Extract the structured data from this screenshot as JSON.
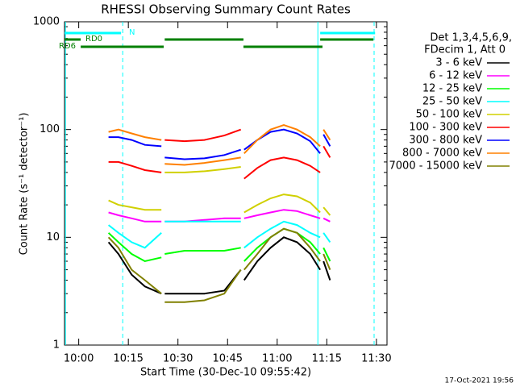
{
  "chart_data": {
    "type": "line",
    "title": "RHESSI Observing Summary Count Rates",
    "xlabel": "Start Time (30-Dec-10 09:55:42)",
    "ylabel": "Count Rate (s⁻¹ detector⁻¹)",
    "log_y": true,
    "xlim": [
      595.7,
      693.2
    ],
    "xticks": [
      {
        "value": 600,
        "label": "10:00"
      },
      {
        "value": 615,
        "label": "10:15"
      },
      {
        "value": 630,
        "label": "10:30"
      },
      {
        "value": 645,
        "label": "10:45"
      },
      {
        "value": 660,
        "label": "11:00"
      },
      {
        "value": 675,
        "label": "11:15"
      },
      {
        "value": 690,
        "label": "11:30"
      }
    ],
    "ylim": [
      1,
      1000
    ],
    "yticks": [
      1,
      10,
      100,
      1000
    ],
    "yminorticks": [
      2,
      3,
      4,
      5,
      6,
      7,
      8,
      9,
      20,
      30,
      40,
      50,
      60,
      70,
      80,
      90,
      200,
      300,
      400,
      500,
      600,
      700,
      800,
      900
    ],
    "legend_header": [
      "Det 1,3,4,5,6,9,",
      "FDecim 1, Att 0"
    ],
    "footer": "17-Oct-2021 19:56",
    "x": [
      609,
      612,
      616,
      620,
      625,
      625.5,
      626,
      632,
      638,
      644,
      649,
      649.5,
      650,
      654,
      658,
      662,
      666,
      670,
      673,
      673.5,
      674,
      676
    ],
    "series": [
      {
        "name": "3 - 6 keV",
        "color": "#000000",
        "values": [
          9,
          7,
          4.5,
          3.5,
          3,
          null,
          3,
          3,
          3,
          3.2,
          5,
          null,
          4,
          6,
          8,
          10,
          9,
          7,
          5,
          null,
          6,
          4
        ]
      },
      {
        "name": "6 - 12 keV",
        "color": "#ff00ff",
        "values": [
          17,
          16,
          15,
          14,
          14,
          null,
          14,
          14,
          14.5,
          15,
          15,
          null,
          15,
          16,
          17,
          18,
          17.5,
          16,
          15,
          null,
          15,
          14
        ]
      },
      {
        "name": "12 - 25 keV",
        "color": "#00ff00",
        "values": [
          11,
          9,
          7,
          6,
          6.5,
          null,
          7,
          7.5,
          7.5,
          7.5,
          8,
          null,
          6,
          8,
          10,
          12,
          11,
          9,
          7,
          null,
          8,
          6
        ]
      },
      {
        "name": "25 - 50 keV",
        "color": "#00ffff",
        "values": [
          13,
          11,
          9,
          8,
          11,
          null,
          14,
          14,
          14,
          14,
          14,
          null,
          8,
          10,
          12,
          14,
          13,
          11,
          10,
          null,
          11,
          9
        ]
      },
      {
        "name": "50 - 100 keV",
        "color": "#d0d000",
        "values": [
          22,
          20,
          19,
          18,
          18,
          null,
          40,
          40,
          41,
          43,
          45,
          null,
          17,
          20,
          23,
          25,
          24,
          21,
          17,
          null,
          19,
          16
        ]
      },
      {
        "name": "100 - 300 keV",
        "color": "#ff0000",
        "values": [
          50,
          50,
          46,
          42,
          40,
          null,
          80,
          78,
          80,
          88,
          100,
          null,
          35,
          44,
          52,
          55,
          52,
          46,
          40,
          null,
          70,
          55
        ]
      },
      {
        "name": "300 - 800 keV",
        "color": "#0000ff",
        "values": [
          85,
          85,
          80,
          72,
          70,
          null,
          55,
          53,
          54,
          58,
          65,
          null,
          65,
          80,
          95,
          100,
          92,
          78,
          60,
          null,
          90,
          70
        ]
      },
      {
        "name": "800 - 7000 keV",
        "color": "#ff8000",
        "values": [
          95,
          100,
          92,
          85,
          80,
          null,
          48,
          47,
          49,
          52,
          55,
          null,
          60,
          80,
          100,
          110,
          100,
          85,
          70,
          null,
          100,
          80
        ]
      },
      {
        "name": "7000 - 15000 keV",
        "color": "#808000",
        "values": [
          10,
          8,
          5,
          4,
          3,
          null,
          2.5,
          2.5,
          2.6,
          3,
          5,
          null,
          5,
          7,
          10,
          12,
          11,
          8,
          6,
          null,
          7,
          5
        ]
      }
    ],
    "flags": [
      {
        "label": "N",
        "color": "#00ffff",
        "intervals": [
          [
            595.7,
            612.8
          ],
          [
            673.0,
            689.6
          ]
        ]
      },
      {
        "label": "RD0",
        "color": "#008000",
        "intervals": [
          [
            595.7,
            600.6
          ],
          [
            626.0,
            649.8
          ],
          [
            673.0,
            689.1
          ]
        ]
      },
      {
        "label": "RD6",
        "color": "#008000",
        "intervals": [
          [
            600.6,
            625.7
          ],
          [
            649.8,
            673.7
          ]
        ]
      }
    ],
    "vlines": [
      {
        "x": 596.0,
        "style": "solid",
        "color": "#00ffff"
      },
      {
        "x": 672.3,
        "style": "solid",
        "color": "#00ffff"
      },
      {
        "x": 613.3,
        "style": "dashed",
        "color": "#00ffff"
      },
      {
        "x": 689.3,
        "style": "dashed",
        "color": "#00ffff"
      }
    ]
  }
}
